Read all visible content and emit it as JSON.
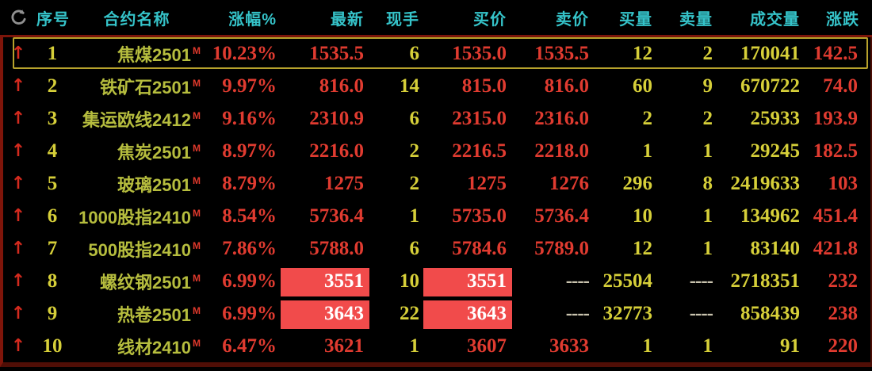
{
  "table": {
    "up_arrow": "↑",
    "empty_value": "----",
    "headers": [
      "序号",
      "合约名称",
      "涨幅%",
      "最新",
      "现手",
      "买价",
      "卖价",
      "买量",
      "卖量",
      "成交量",
      "涨跌"
    ],
    "rows": [
      {
        "no": "1",
        "name": "焦煤2501",
        "m": "M",
        "pct": "10.23%",
        "last": "1535.5",
        "hand": "6",
        "bid": "1535.0",
        "ask": "1535.5",
        "bidvol": "12",
        "askvol": "2",
        "vol": "170041",
        "chg": "142.5",
        "selected": true,
        "hl": []
      },
      {
        "no": "2",
        "name": "铁矿石2501",
        "m": "M",
        "pct": "9.97%",
        "last": "816.0",
        "hand": "14",
        "bid": "815.0",
        "ask": "816.0",
        "bidvol": "60",
        "askvol": "9",
        "vol": "670722",
        "chg": "74.0",
        "selected": false,
        "hl": []
      },
      {
        "no": "3",
        "name": "集运欧线2412",
        "m": "M",
        "pct": "9.16%",
        "last": "2310.9",
        "hand": "6",
        "bid": "2315.0",
        "ask": "2316.0",
        "bidvol": "2",
        "askvol": "2",
        "vol": "25933",
        "chg": "193.9",
        "selected": false,
        "hl": []
      },
      {
        "no": "4",
        "name": "焦炭2501",
        "m": "M",
        "pct": "8.97%",
        "last": "2216.0",
        "hand": "2",
        "bid": "2216.5",
        "ask": "2218.0",
        "bidvol": "1",
        "askvol": "1",
        "vol": "29245",
        "chg": "182.5",
        "selected": false,
        "hl": []
      },
      {
        "no": "5",
        "name": "玻璃2501",
        "m": "M",
        "pct": "8.79%",
        "last": "1275",
        "hand": "2",
        "bid": "1275",
        "ask": "1276",
        "bidvol": "296",
        "askvol": "8",
        "vol": "2419633",
        "chg": "103",
        "selected": false,
        "hl": []
      },
      {
        "no": "6",
        "name": "1000股指2410",
        "m": "M",
        "pct": "8.54%",
        "last": "5736.4",
        "hand": "1",
        "bid": "5735.0",
        "ask": "5736.4",
        "bidvol": "10",
        "askvol": "1",
        "vol": "134962",
        "chg": "451.4",
        "selected": false,
        "hl": []
      },
      {
        "no": "7",
        "name": "500股指2410",
        "m": "M",
        "pct": "7.86%",
        "last": "5788.0",
        "hand": "6",
        "bid": "5784.6",
        "ask": "5789.0",
        "bidvol": "12",
        "askvol": "1",
        "vol": "83140",
        "chg": "421.8",
        "selected": false,
        "hl": []
      },
      {
        "no": "8",
        "name": "螺纹钢2501",
        "m": "M",
        "pct": "6.99%",
        "last": "3551",
        "hand": "10",
        "bid": "3551",
        "ask": "----",
        "bidvol": "25504",
        "askvol": "----",
        "vol": "2718351",
        "chg": "232",
        "selected": false,
        "hl": [
          "last",
          "bid"
        ]
      },
      {
        "no": "9",
        "name": "热卷2501",
        "m": "M",
        "pct": "6.99%",
        "last": "3643",
        "hand": "22",
        "bid": "3643",
        "ask": "----",
        "bidvol": "32773",
        "askvol": "----",
        "vol": "858439",
        "chg": "238",
        "selected": false,
        "hl": [
          "last",
          "bid"
        ]
      },
      {
        "no": "10",
        "name": "线材2410",
        "m": "M",
        "pct": "6.47%",
        "last": "3621",
        "hand": "1",
        "bid": "3607",
        "ask": "3633",
        "bidvol": "1",
        "askvol": "1",
        "vol": "91",
        "chg": "220",
        "selected": false,
        "hl": []
      }
    ]
  },
  "colors": {
    "background": "#000000",
    "header_text": "#35c3c9",
    "price_up_text": "#e03b30",
    "quantity_text": "#d6cf39",
    "contract_name_text": "#b6bd3e",
    "main_badge_text": "#e0392c",
    "highlight_bg": "#f14b4b",
    "highlight_text": "#ffffff",
    "selection_border": "#b7a22c",
    "frame_border": "#7c150a",
    "dash_text": "#c9c3ae",
    "arrow": "#d42a1e",
    "refresh_icon": "#909090"
  }
}
